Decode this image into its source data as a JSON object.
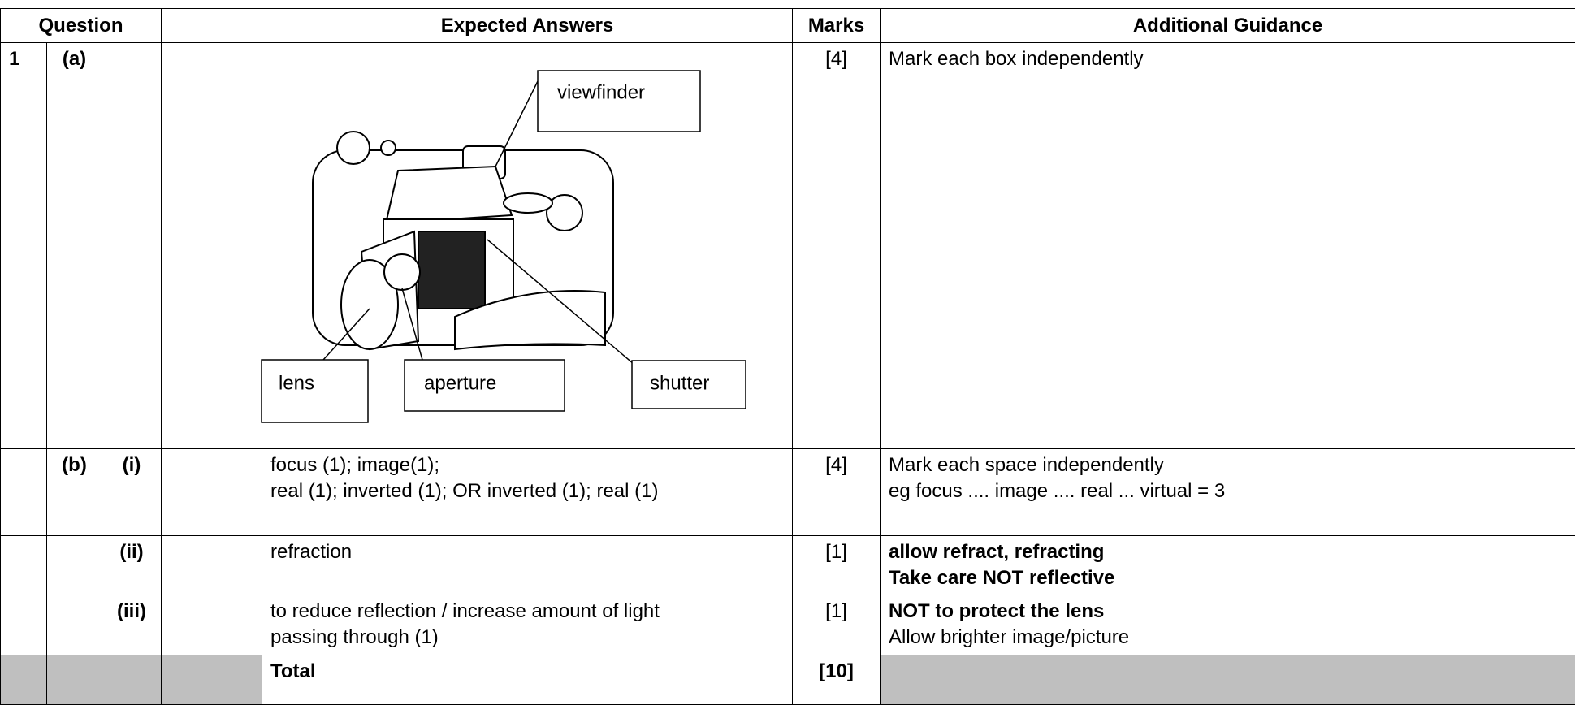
{
  "header": {
    "question": "Question",
    "expected_answers": "Expected Answers",
    "marks": "Marks",
    "additional_guidance": "Additional Guidance"
  },
  "rows": [
    {
      "question": "1",
      "part": "(a)",
      "diagram_labels": {
        "viewfinder": "viewfinder",
        "lens": "lens",
        "aperture": "aperture",
        "shutter": "shutter"
      },
      "marks": "[4]",
      "guidance": [
        "Mark each box independently"
      ]
    },
    {
      "part": "(b)",
      "subpart": "(i)",
      "answer": [
        "focus (1); image(1);",
        "real (1); inverted (1); OR inverted (1); real (1)"
      ],
      "marks": "[4]",
      "guidance": [
        "Mark each space independently",
        "eg focus .... image .... real ... virtual = 3"
      ]
    },
    {
      "subpart": "(ii)",
      "answer": [
        "refraction"
      ],
      "marks": "[1]",
      "guidance_bold": [
        "allow refract, refracting",
        "Take care NOT reflective"
      ]
    },
    {
      "subpart": "(iii)",
      "answer": [
        "to reduce reflection / increase amount of light",
        "passing through (1)"
      ],
      "marks": "[1]",
      "guidance_bold": [
        "NOT to protect the lens"
      ],
      "guidance": [
        "Allow brighter image/picture"
      ]
    }
  ],
  "total": {
    "label": "Total",
    "marks": "[10]"
  }
}
